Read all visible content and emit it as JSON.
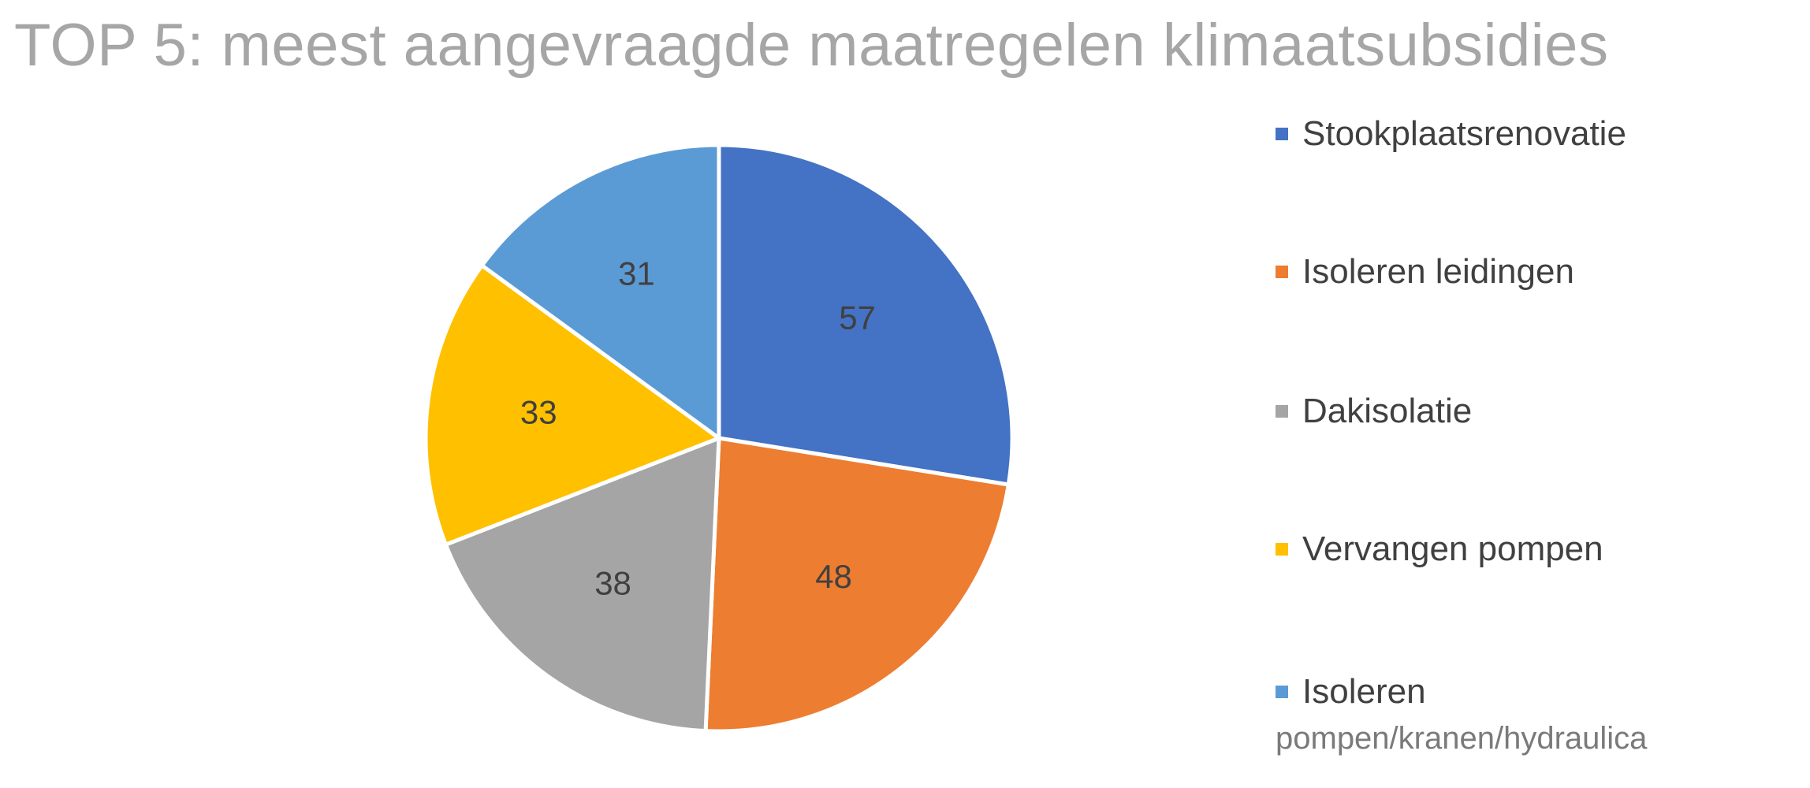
{
  "chart_data": {
    "type": "pie",
    "title": "TOP 5: meest aangevraagde maatregelen klimaatsubsidies",
    "legend_placement": "right",
    "categories": [
      "Stookplaatsrenovatie",
      "Isoleren leidingen",
      "Dakisolatie",
      "Vervangen pompen",
      "Isoleren pompen/kranen/hydraulica"
    ],
    "values": [
      57,
      48,
      38,
      33,
      31
    ],
    "colors": [
      "#4472c4",
      "#ed7d31",
      "#a5a5a5",
      "#ffc000",
      "#5b9bd5"
    ]
  },
  "legend": {
    "items": [
      {
        "label": "Stookplaatsrenovatie"
      },
      {
        "label": "Isoleren leidingen"
      },
      {
        "label": "Dakisolatie"
      },
      {
        "label": "Vervangen pompen"
      },
      {
        "label_line1": "Isoleren",
        "label_line2": "pompen/kranen/hydraulica"
      }
    ]
  }
}
